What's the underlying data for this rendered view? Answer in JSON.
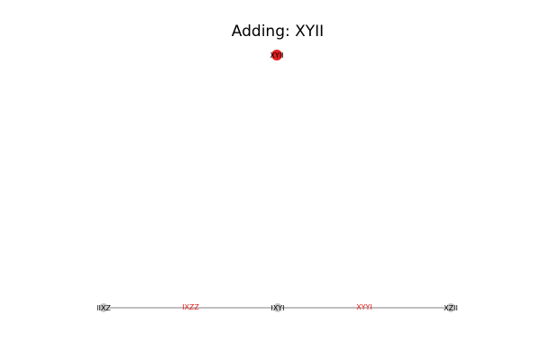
{
  "title": "Adding: XYII",
  "colors": {
    "new_node": "#e0201e",
    "node": "#c8c8c8",
    "edge": "#9a9a9a",
    "edge_label": "#e0201e",
    "text": "#000000"
  },
  "new_node": {
    "label": "XYII"
  },
  "nodes": [
    {
      "id": "n1",
      "label": "IIXZ"
    },
    {
      "id": "n2",
      "label": "IXYI"
    },
    {
      "id": "n3",
      "label": "XZII"
    }
  ],
  "edges": [
    {
      "from": "n1",
      "to": "n2",
      "label": "IXZZ"
    },
    {
      "from": "n2",
      "to": "n3",
      "label": "XYYI"
    }
  ]
}
